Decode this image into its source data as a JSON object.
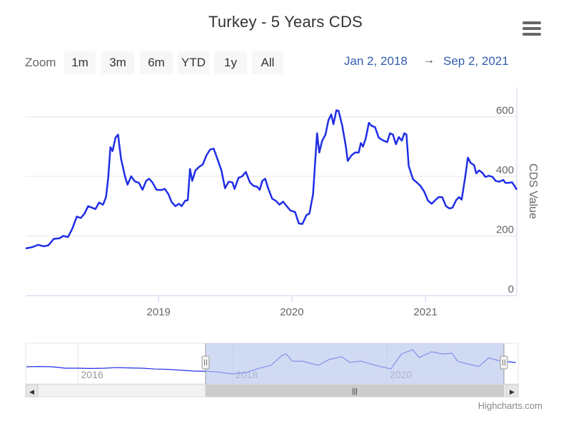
{
  "chart_data": {
    "type": "line",
    "title": "Turkey - 5 Years CDS",
    "ylabel": "CDS Value",
    "ylim": [
      0,
      700
    ],
    "yticks": [
      0,
      200,
      400,
      600
    ],
    "xlim": [
      "2018-01-02",
      "2021-09-02"
    ],
    "xticks": [
      "2019",
      "2020",
      "2021"
    ],
    "grid": true,
    "series": [
      {
        "color": "#1f2ee6",
        "points": [
          [
            "2018-01-02",
            158
          ],
          [
            "2018-01-20",
            162
          ],
          [
            "2018-02-05",
            170
          ],
          [
            "2018-02-20",
            165
          ],
          [
            "2018-03-05",
            168
          ],
          [
            "2018-03-20",
            190
          ],
          [
            "2018-04-05",
            192
          ],
          [
            "2018-04-15",
            200
          ],
          [
            "2018-04-28",
            196
          ],
          [
            "2018-05-10",
            225
          ],
          [
            "2018-05-22",
            265
          ],
          [
            "2018-06-02",
            260
          ],
          [
            "2018-06-12",
            275
          ],
          [
            "2018-06-22",
            300
          ],
          [
            "2018-07-02",
            295
          ],
          [
            "2018-07-12",
            290
          ],
          [
            "2018-07-22",
            312
          ],
          [
            "2018-08-02",
            305
          ],
          [
            "2018-08-10",
            330
          ],
          [
            "2018-08-16",
            395
          ],
          [
            "2018-08-22",
            498
          ],
          [
            "2018-08-28",
            485
          ],
          [
            "2018-09-05",
            530
          ],
          [
            "2018-09-12",
            540
          ],
          [
            "2018-09-20",
            460
          ],
          [
            "2018-10-01",
            400
          ],
          [
            "2018-10-08",
            372
          ],
          [
            "2018-10-18",
            400
          ],
          [
            "2018-10-28",
            383
          ],
          [
            "2018-11-08",
            378
          ],
          [
            "2018-11-18",
            355
          ],
          [
            "2018-11-28",
            385
          ],
          [
            "2018-12-06",
            392
          ],
          [
            "2018-12-16",
            378
          ],
          [
            "2018-12-26",
            355
          ],
          [
            "2019-01-08",
            354
          ],
          [
            "2019-01-18",
            358
          ],
          [
            "2019-01-28",
            340
          ],
          [
            "2019-02-06",
            313
          ],
          [
            "2019-02-16",
            300
          ],
          [
            "2019-02-26",
            308
          ],
          [
            "2019-03-05",
            300
          ],
          [
            "2019-03-15",
            318
          ],
          [
            "2019-03-22",
            320
          ],
          [
            "2019-03-28",
            425
          ],
          [
            "2019-04-03",
            385
          ],
          [
            "2019-04-12",
            420
          ],
          [
            "2019-04-22",
            432
          ],
          [
            "2019-05-02",
            440
          ],
          [
            "2019-05-12",
            470
          ],
          [
            "2019-05-22",
            490
          ],
          [
            "2019-06-01",
            493
          ],
          [
            "2019-06-12",
            455
          ],
          [
            "2019-06-22",
            420
          ],
          [
            "2019-07-02",
            360
          ],
          [
            "2019-07-12",
            382
          ],
          [
            "2019-07-22",
            380
          ],
          [
            "2019-07-28",
            358
          ],
          [
            "2019-08-08",
            395
          ],
          [
            "2019-08-18",
            400
          ],
          [
            "2019-08-28",
            415
          ],
          [
            "2019-09-08",
            380
          ],
          [
            "2019-09-18",
            368
          ],
          [
            "2019-09-28",
            365
          ],
          [
            "2019-10-05",
            355
          ],
          [
            "2019-10-12",
            385
          ],
          [
            "2019-10-20",
            392
          ],
          [
            "2019-10-28",
            360
          ],
          [
            "2019-11-08",
            325
          ],
          [
            "2019-11-18",
            318
          ],
          [
            "2019-11-28",
            305
          ],
          [
            "2019-12-08",
            315
          ],
          [
            "2019-12-18",
            300
          ],
          [
            "2019-12-28",
            285
          ],
          [
            "2020-01-10",
            280
          ],
          [
            "2020-01-20",
            242
          ],
          [
            "2020-01-30",
            240
          ],
          [
            "2020-02-10",
            270
          ],
          [
            "2020-02-18",
            275
          ],
          [
            "2020-02-28",
            340
          ],
          [
            "2020-03-10",
            545
          ],
          [
            "2020-03-16",
            480
          ],
          [
            "2020-03-24",
            520
          ],
          [
            "2020-04-02",
            540
          ],
          [
            "2020-04-10",
            588
          ],
          [
            "2020-04-18",
            608
          ],
          [
            "2020-04-24",
            575
          ],
          [
            "2020-05-02",
            622
          ],
          [
            "2020-05-08",
            620
          ],
          [
            "2020-05-18",
            570
          ],
          [
            "2020-05-28",
            500
          ],
          [
            "2020-06-02",
            452
          ],
          [
            "2020-06-12",
            470
          ],
          [
            "2020-06-22",
            480
          ],
          [
            "2020-07-02",
            480
          ],
          [
            "2020-07-08",
            512
          ],
          [
            "2020-07-14",
            500
          ],
          [
            "2020-07-22",
            530
          ],
          [
            "2020-07-30",
            580
          ],
          [
            "2020-08-06",
            570
          ],
          [
            "2020-08-16",
            565
          ],
          [
            "2020-08-26",
            530
          ],
          [
            "2020-09-08",
            520
          ],
          [
            "2020-09-18",
            515
          ],
          [
            "2020-09-26",
            545
          ],
          [
            "2020-10-04",
            540
          ],
          [
            "2020-10-12",
            508
          ],
          [
            "2020-10-20",
            532
          ],
          [
            "2020-10-28",
            520
          ],
          [
            "2020-11-04",
            545
          ],
          [
            "2020-11-10",
            540
          ],
          [
            "2020-11-16",
            435
          ],
          [
            "2020-11-28",
            390
          ],
          [
            "2020-12-08",
            380
          ],
          [
            "2020-12-18",
            368
          ],
          [
            "2020-12-28",
            350
          ],
          [
            "2021-01-08",
            318
          ],
          [
            "2021-01-18",
            308
          ],
          [
            "2021-01-28",
            320
          ],
          [
            "2021-02-06",
            330
          ],
          [
            "2021-02-16",
            330
          ],
          [
            "2021-02-26",
            300
          ],
          [
            "2021-03-08",
            292
          ],
          [
            "2021-03-16",
            295
          ],
          [
            "2021-03-26",
            320
          ],
          [
            "2021-04-03",
            330
          ],
          [
            "2021-04-10",
            322
          ],
          [
            "2021-04-20",
            400
          ],
          [
            "2021-04-27",
            463
          ],
          [
            "2021-05-05",
            445
          ],
          [
            "2021-05-14",
            438
          ],
          [
            "2021-05-20",
            410
          ],
          [
            "2021-05-28",
            420
          ],
          [
            "2021-06-06",
            412
          ],
          [
            "2021-06-14",
            398
          ],
          [
            "2021-06-24",
            402
          ],
          [
            "2021-07-04",
            398
          ],
          [
            "2021-07-12",
            385
          ],
          [
            "2021-07-22",
            382
          ],
          [
            "2021-08-02",
            388
          ],
          [
            "2021-08-08",
            378
          ],
          [
            "2021-08-16",
            378
          ],
          [
            "2021-08-26",
            380
          ],
          [
            "2021-09-02",
            368
          ],
          [
            "2021-09-08",
            355
          ]
        ]
      }
    ]
  },
  "toolbar": {
    "zoom_label": "Zoom",
    "buttons": [
      "1m",
      "3m",
      "6m",
      "YTD",
      "1y",
      "All"
    ],
    "range_from": "Jan 2, 2018",
    "range_arrow": "→",
    "range_to": "Sep 2, 2021"
  },
  "navigator": {
    "xticks": [
      "2016",
      "2018",
      "2020"
    ],
    "scrollbar_left": "◀",
    "scrollbar_right": "▶",
    "scrollbar_grip": "|||",
    "color_line": "#1f2ee6",
    "color_mask": "#b9c6ec",
    "values": [
      [
        "2015-05-01",
        110
      ],
      [
        "2015-07-01",
        112
      ],
      [
        "2015-09-01",
        110
      ],
      [
        "2015-11-01",
        100
      ],
      [
        "2016-01-01",
        100
      ],
      [
        "2016-03-01",
        98
      ],
      [
        "2016-05-01",
        100
      ],
      [
        "2016-07-01",
        104
      ],
      [
        "2016-09-01",
        102
      ],
      [
        "2016-11-01",
        100
      ],
      [
        "2017-01-01",
        94
      ],
      [
        "2017-03-01",
        92
      ],
      [
        "2017-05-01",
        86
      ],
      [
        "2017-07-01",
        80
      ],
      [
        "2017-09-01",
        78
      ],
      [
        "2017-11-01",
        72
      ],
      [
        "2018-01-02",
        60
      ],
      [
        "2018-03-01",
        68
      ],
      [
        "2018-05-01",
        98
      ],
      [
        "2018-07-01",
        120
      ],
      [
        "2018-08-22",
        188
      ],
      [
        "2018-09-12",
        200
      ],
      [
        "2018-10-10",
        150
      ],
      [
        "2018-12-01",
        148
      ],
      [
        "2019-02-10",
        120
      ],
      [
        "2019-04-01",
        160
      ],
      [
        "2019-06-01",
        180
      ],
      [
        "2019-07-10",
        140
      ],
      [
        "2019-09-01",
        150
      ],
      [
        "2019-11-01",
        122
      ],
      [
        "2020-01-20",
        95
      ],
      [
        "2020-03-10",
        200
      ],
      [
        "2020-05-02",
        230
      ],
      [
        "2020-06-02",
        175
      ],
      [
        "2020-07-30",
        215
      ],
      [
        "2020-09-20",
        200
      ],
      [
        "2020-11-04",
        205
      ],
      [
        "2020-12-01",
        148
      ],
      [
        "2021-02-01",
        125
      ],
      [
        "2021-03-10",
        112
      ],
      [
        "2021-04-27",
        172
      ],
      [
        "2021-06-15",
        152
      ],
      [
        "2021-09-02",
        140
      ]
    ]
  },
  "credits": "Highcharts.com"
}
